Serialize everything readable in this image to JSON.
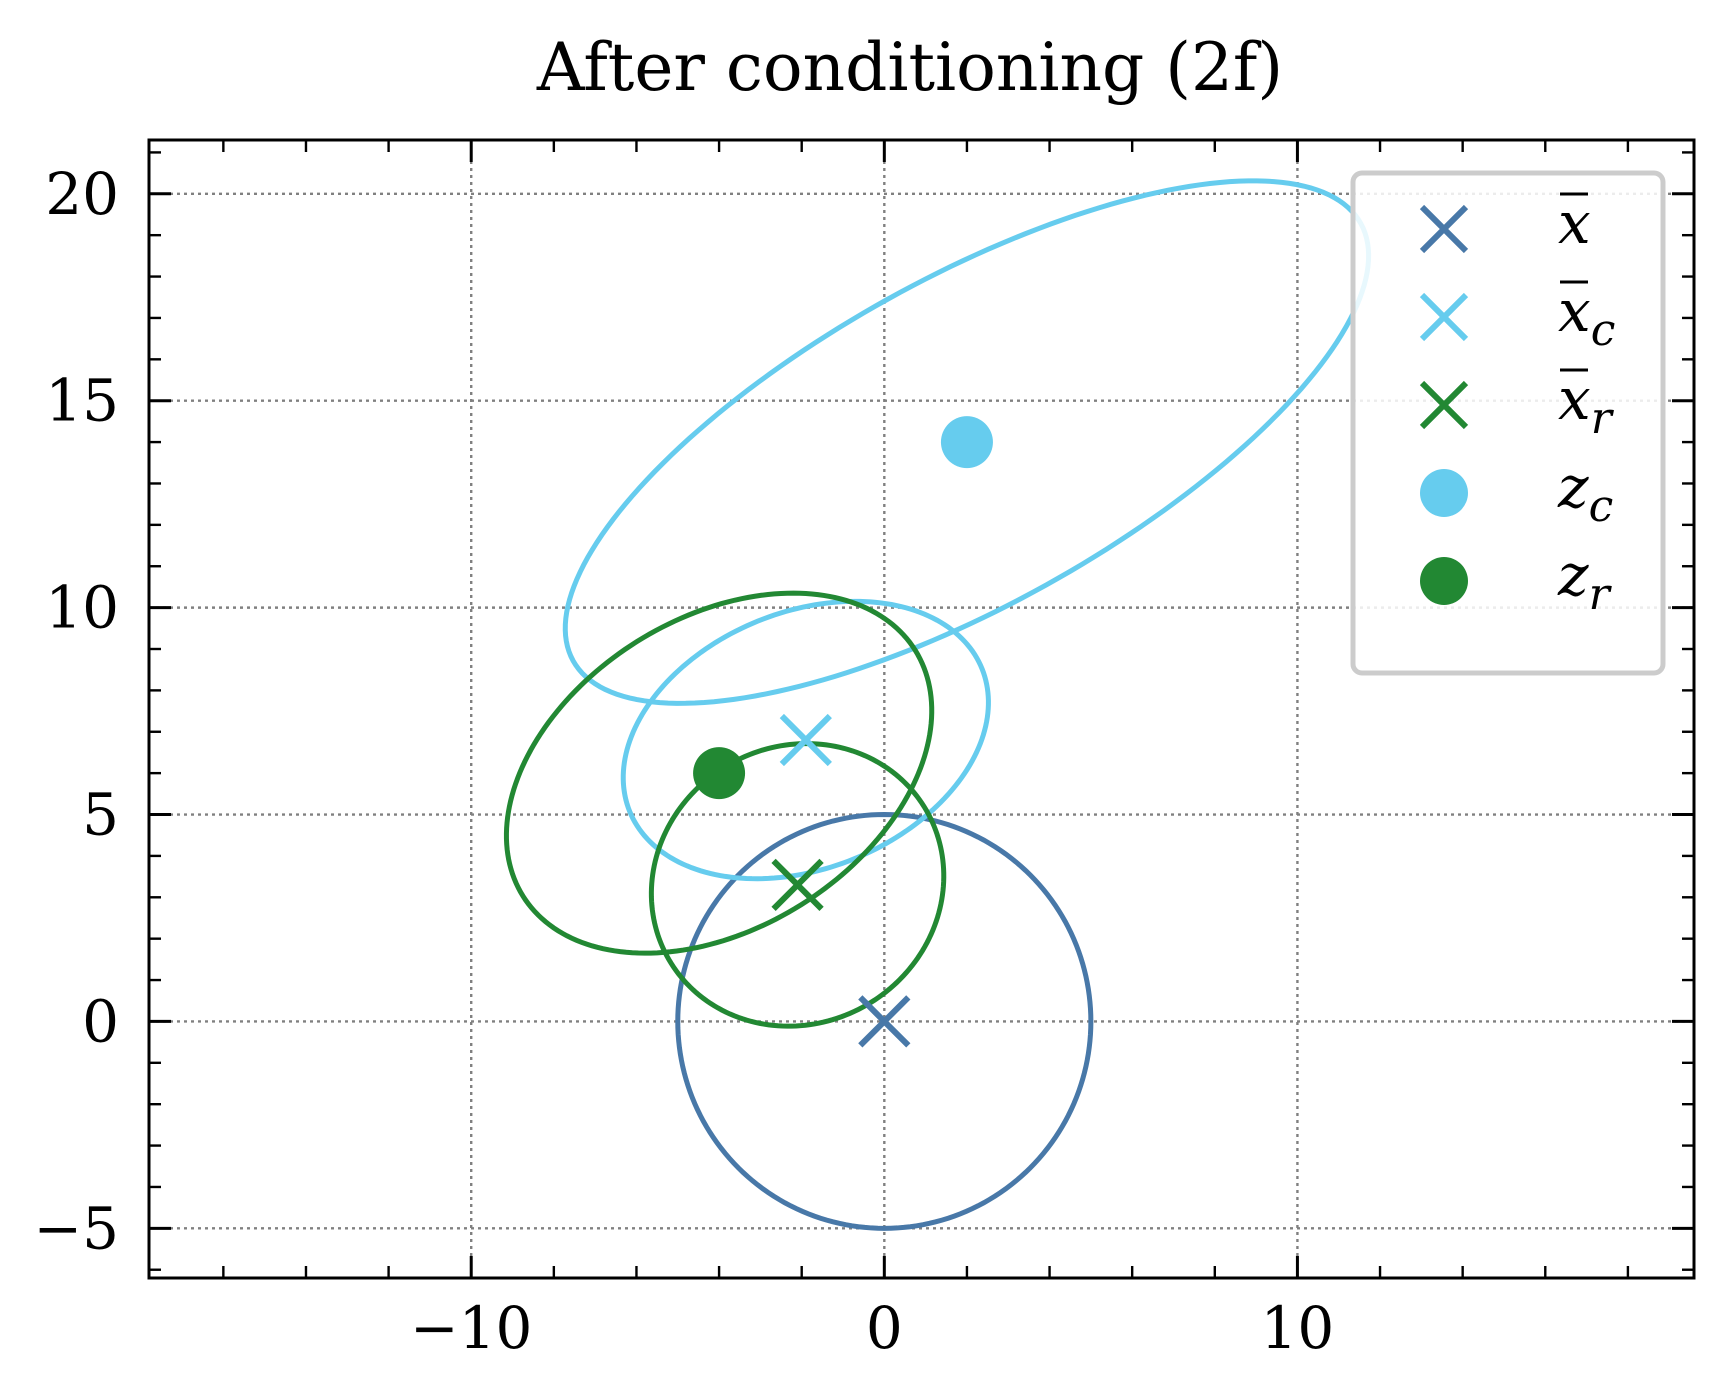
{
  "chart_data": {
    "type": "scatter",
    "title": "After conditioning (2f)",
    "xlabel": "",
    "ylabel": "",
    "xlim": [
      -17.8,
      19.6
    ],
    "ylim": [
      -6.2,
      21.3
    ],
    "xticks": [
      -10,
      0,
      10
    ],
    "xtick_labels": [
      "−10",
      "0",
      "10"
    ],
    "yticks": [
      -5,
      0,
      5,
      10,
      15,
      20
    ],
    "ytick_labels": [
      "−5",
      "0",
      "5",
      "10",
      "15",
      "20"
    ],
    "x_minor_step": 2,
    "y_minor_step": 1,
    "grid": true,
    "legend_position": "top-right",
    "colors": {
      "x_bar": "#4878A8",
      "x_c": "#66CCEE",
      "x_r": "#228833",
      "grid": "#808080",
      "legend_frame": "#CCCCCC"
    },
    "legend": [
      {
        "name": "x̄",
        "base": "x",
        "sub": "",
        "marker": "x",
        "color": "#4878A8"
      },
      {
        "name": "x̄_c",
        "base": "x",
        "sub": "c",
        "marker": "x",
        "color": "#66CCEE"
      },
      {
        "name": "x̄_r",
        "base": "x",
        "sub": "r",
        "marker": "x",
        "color": "#228833"
      },
      {
        "name": "z_c",
        "base": "z",
        "sub": "c",
        "marker": "o",
        "color": "#66CCEE"
      },
      {
        "name": "z_r",
        "base": "z",
        "sub": "r",
        "marker": "o",
        "color": "#228833"
      }
    ],
    "series": [
      {
        "name": "x̄",
        "marker": "x",
        "color": "#4878A8",
        "points": [
          [
            0,
            0
          ]
        ]
      },
      {
        "name": "x̄_c",
        "marker": "x",
        "color": "#66CCEE",
        "points": [
          [
            -1.9,
            6.8
          ]
        ]
      },
      {
        "name": "x̄_r",
        "marker": "x",
        "color": "#228833",
        "points": [
          [
            -2.1,
            3.3
          ]
        ]
      },
      {
        "name": "z_c",
        "marker": "o",
        "color": "#66CCEE",
        "points": [
          [
            2.0,
            14.0
          ]
        ]
      },
      {
        "name": "z_r",
        "marker": "o",
        "color": "#228833",
        "points": [
          [
            -4.0,
            6.0
          ]
        ]
      }
    ],
    "ellipses": [
      {
        "color": "#4878A8",
        "cx": 0.0,
        "cy": 0.0,
        "rx": 5.0,
        "ry": 5.0,
        "angle_deg": 0
      },
      {
        "color": "#66CCEE",
        "cx": 2.0,
        "cy": 14.0,
        "rx": 10.9,
        "ry": 3.95,
        "angle_deg": 29
      },
      {
        "color": "#66CCEE",
        "cx": -1.9,
        "cy": 6.8,
        "rx": 4.6,
        "ry": 3.1,
        "angle_deg": 22
      },
      {
        "color": "#228833",
        "cx": -4.0,
        "cy": 6.0,
        "rx": 5.6,
        "ry": 3.75,
        "angle_deg": 32
      },
      {
        "color": "#228833",
        "cx": -2.1,
        "cy": 3.3,
        "rx": 3.6,
        "ry": 3.35,
        "angle_deg": 30
      }
    ]
  }
}
